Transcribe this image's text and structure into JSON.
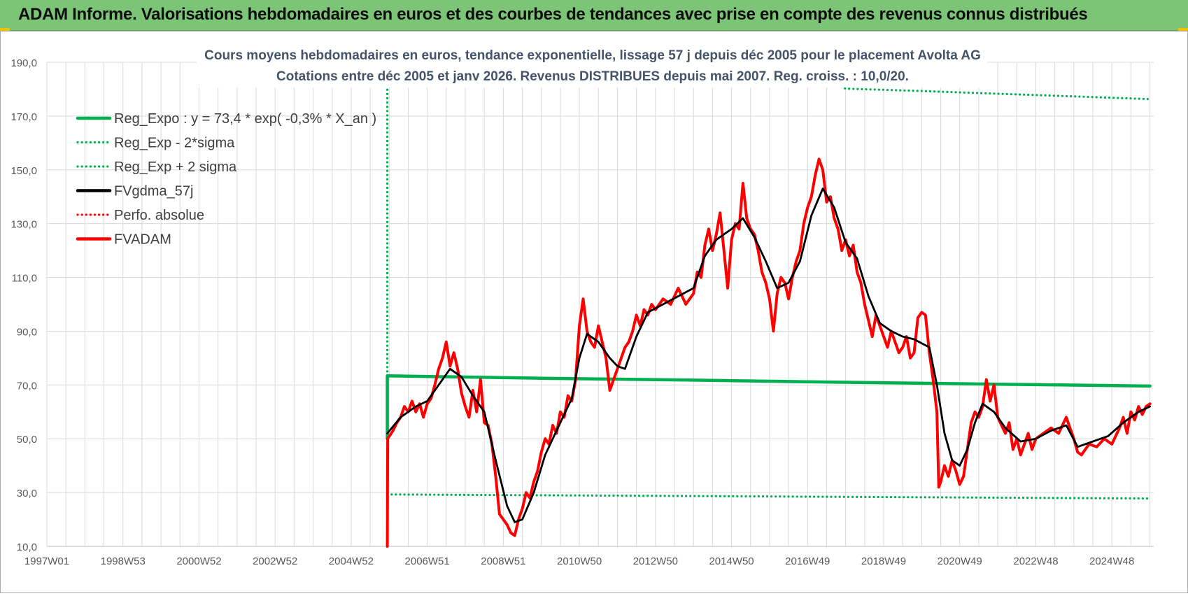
{
  "header": {
    "title": "ADAM Informe. Valorisations hebdomadaires en euros et des courbes de tendances avec prise en compte des revenus connus distribués"
  },
  "colors": {
    "title_bar": "#7cc576",
    "green": "#00b050",
    "black": "#000000",
    "red": "#ff0000",
    "grid": "#d9d9d9",
    "axis_text": "#595959",
    "chart_title": "#44546a"
  },
  "chart_data": {
    "type": "line",
    "title": "Cours moyens hebdomadaires en euros, tendance exponentielle, lissage 57 j depuis déc 2005 pour le placement Avolta AG",
    "subtitle": "Cotations entre déc 2005 et janv 2026. Revenus DISTRIBUES depuis mai 2007. Reg. croiss. : 10,0/20.",
    "xlabel": "",
    "ylabel": "",
    "x_range": [
      1997.0,
      2026.1
    ],
    "ylim": [
      10,
      190
    ],
    "y_ticks": [
      "10,0",
      "30,0",
      "50,0",
      "70,0",
      "90,0",
      "110,0",
      "130,0",
      "150,0",
      "170,0",
      "190,0"
    ],
    "x_ticks": [
      {
        "label": "1997W01",
        "x": 1997.0
      },
      {
        "label": "1998W53",
        "x": 1999.0
      },
      {
        "label": "2000W52",
        "x": 2001.0
      },
      {
        "label": "2002W52",
        "x": 2003.0
      },
      {
        "label": "2004W52",
        "x": 2005.0
      },
      {
        "label": "2006W51",
        "x": 2007.0
      },
      {
        "label": "2008W51",
        "x": 2009.0
      },
      {
        "label": "2010W50",
        "x": 2011.0
      },
      {
        "label": "2012W50",
        "x": 2013.0
      },
      {
        "label": "2014W50",
        "x": 2015.0
      },
      {
        "label": "2016W49",
        "x": 2017.0
      },
      {
        "label": "2018W49",
        "x": 2019.0
      },
      {
        "label": "2020W49",
        "x": 2021.0
      },
      {
        "label": "2022W48",
        "x": 2023.0
      },
      {
        "label": "2024W48",
        "x": 2025.0
      }
    ],
    "grid": true,
    "legend_position": "top-left",
    "series": [
      {
        "name": "Reg_Expo : y = 73,4 * exp( -0,3% *  X_an )",
        "style": "solid",
        "color": "#00b050",
        "points": [
          [
            2005.95,
            50
          ],
          [
            2005.95,
            73.4
          ],
          [
            2010,
            72.5
          ],
          [
            2014,
            71.8
          ],
          [
            2018,
            71.0
          ],
          [
            2022,
            70.3
          ],
          [
            2026.0,
            69.6
          ]
        ]
      },
      {
        "name": "Reg_Exp - 2*sigma",
        "style": "dotted",
        "color": "#00b050",
        "points": [
          [
            2005.95,
            29.3
          ],
          [
            2010,
            29.0
          ],
          [
            2014,
            28.7
          ],
          [
            2018,
            28.4
          ],
          [
            2022,
            28.1
          ],
          [
            2026.0,
            27.8
          ]
        ]
      },
      {
        "name": "Reg_Exp + 2 sigma",
        "style": "dotted",
        "color": "#00b050",
        "points": [
          [
            2005.95,
            10
          ],
          [
            2005.95,
            190
          ],
          [
            2005.95,
            190
          ],
          [
            2016.5,
            190
          ],
          [
            2018.0,
            180.2
          ],
          [
            2020,
            179.3
          ],
          [
            2022,
            178.3
          ],
          [
            2024,
            177.3
          ],
          [
            2026.0,
            176.3
          ]
        ]
      },
      {
        "name": "FVgdma_57j",
        "style": "solid",
        "color": "#000000",
        "points": [
          [
            2005.95,
            52
          ],
          [
            2006.3,
            58
          ],
          [
            2006.7,
            62
          ],
          [
            2007.0,
            64
          ],
          [
            2007.3,
            70
          ],
          [
            2007.6,
            76
          ],
          [
            2007.9,
            73
          ],
          [
            2008.2,
            66
          ],
          [
            2008.5,
            60
          ],
          [
            2008.8,
            42
          ],
          [
            2009.1,
            25
          ],
          [
            2009.3,
            19
          ],
          [
            2009.5,
            20
          ],
          [
            2009.8,
            30
          ],
          [
            2010.1,
            44
          ],
          [
            2010.5,
            56
          ],
          [
            2010.8,
            65
          ],
          [
            2011.0,
            80
          ],
          [
            2011.2,
            89
          ],
          [
            2011.5,
            86
          ],
          [
            2011.8,
            80
          ],
          [
            2012.0,
            77
          ],
          [
            2012.2,
            76
          ],
          [
            2012.5,
            88
          ],
          [
            2012.8,
            97
          ],
          [
            2013.2,
            100
          ],
          [
            2013.6,
            103
          ],
          [
            2014.0,
            106
          ],
          [
            2014.3,
            118
          ],
          [
            2014.6,
            124
          ],
          [
            2015.0,
            128
          ],
          [
            2015.3,
            132
          ],
          [
            2015.6,
            125
          ],
          [
            2015.9,
            116
          ],
          [
            2016.2,
            106
          ],
          [
            2016.5,
            108
          ],
          [
            2016.8,
            116
          ],
          [
            2017.1,
            133
          ],
          [
            2017.4,
            143
          ],
          [
            2017.7,
            136
          ],
          [
            2018.0,
            123
          ],
          [
            2018.3,
            117
          ],
          [
            2018.6,
            103
          ],
          [
            2018.9,
            93
          ],
          [
            2019.2,
            90
          ],
          [
            2019.5,
            88
          ],
          [
            2019.8,
            87
          ],
          [
            2020.2,
            84
          ],
          [
            2020.4,
            70
          ],
          [
            2020.6,
            52
          ],
          [
            2020.8,
            42
          ],
          [
            2021.0,
            40
          ],
          [
            2021.2,
            46
          ],
          [
            2021.4,
            56
          ],
          [
            2021.6,
            63
          ],
          [
            2021.9,
            60
          ],
          [
            2022.2,
            54
          ],
          [
            2022.6,
            49
          ],
          [
            2023.0,
            50
          ],
          [
            2023.4,
            53
          ],
          [
            2023.8,
            55
          ],
          [
            2024.1,
            47
          ],
          [
            2024.5,
            49
          ],
          [
            2024.9,
            51
          ],
          [
            2025.3,
            56
          ],
          [
            2025.7,
            60
          ],
          [
            2026.0,
            62
          ]
        ]
      },
      {
        "name": "Perfo. absolue",
        "style": "dotted",
        "color": "#ff0000",
        "points": []
      },
      {
        "name": "FVADAM",
        "style": "solid",
        "color": "#ff0000",
        "points": [
          [
            2005.95,
            10
          ],
          [
            2005.96,
            50
          ],
          [
            2006.1,
            53
          ],
          [
            2006.2,
            56
          ],
          [
            2006.3,
            58
          ],
          [
            2006.4,
            62
          ],
          [
            2006.5,
            60
          ],
          [
            2006.6,
            64
          ],
          [
            2006.7,
            60
          ],
          [
            2006.8,
            63
          ],
          [
            2006.9,
            58
          ],
          [
            2007.0,
            63
          ],
          [
            2007.1,
            65
          ],
          [
            2007.2,
            70
          ],
          [
            2007.3,
            76
          ],
          [
            2007.4,
            80
          ],
          [
            2007.5,
            86
          ],
          [
            2007.6,
            77
          ],
          [
            2007.7,
            82
          ],
          [
            2007.8,
            76
          ],
          [
            2007.9,
            67
          ],
          [
            2008.0,
            62
          ],
          [
            2008.1,
            58
          ],
          [
            2008.2,
            68
          ],
          [
            2008.3,
            60
          ],
          [
            2008.4,
            72
          ],
          [
            2008.5,
            56
          ],
          [
            2008.6,
            55
          ],
          [
            2008.7,
            48
          ],
          [
            2008.8,
            36
          ],
          [
            2008.9,
            22
          ],
          [
            2009.0,
            20
          ],
          [
            2009.1,
            18
          ],
          [
            2009.2,
            15
          ],
          [
            2009.3,
            14
          ],
          [
            2009.4,
            20
          ],
          [
            2009.5,
            24
          ],
          [
            2009.6,
            30
          ],
          [
            2009.7,
            28
          ],
          [
            2009.8,
            34
          ],
          [
            2009.9,
            38
          ],
          [
            2010.0,
            45
          ],
          [
            2010.1,
            50
          ],
          [
            2010.2,
            48
          ],
          [
            2010.3,
            55
          ],
          [
            2010.4,
            52
          ],
          [
            2010.5,
            60
          ],
          [
            2010.6,
            58
          ],
          [
            2010.7,
            66
          ],
          [
            2010.8,
            64
          ],
          [
            2010.9,
            72
          ],
          [
            2011.0,
            92
          ],
          [
            2011.1,
            102
          ],
          [
            2011.2,
            90
          ],
          [
            2011.3,
            86
          ],
          [
            2011.4,
            84
          ],
          [
            2011.5,
            92
          ],
          [
            2011.6,
            86
          ],
          [
            2011.7,
            80
          ],
          [
            2011.8,
            68
          ],
          [
            2011.9,
            72
          ],
          [
            2012.0,
            76
          ],
          [
            2012.1,
            80
          ],
          [
            2012.2,
            84
          ],
          [
            2012.3,
            86
          ],
          [
            2012.4,
            90
          ],
          [
            2012.5,
            96
          ],
          [
            2012.6,
            92
          ],
          [
            2012.7,
            98
          ],
          [
            2012.8,
            96
          ],
          [
            2012.9,
            100
          ],
          [
            2013.0,
            98
          ],
          [
            2013.2,
            102
          ],
          [
            2013.4,
            100
          ],
          [
            2013.6,
            106
          ],
          [
            2013.8,
            100
          ],
          [
            2014.0,
            104
          ],
          [
            2014.1,
            112
          ],
          [
            2014.2,
            110
          ],
          [
            2014.3,
            122
          ],
          [
            2014.4,
            128
          ],
          [
            2014.5,
            120
          ],
          [
            2014.6,
            126
          ],
          [
            2014.7,
            134
          ],
          [
            2014.8,
            120
          ],
          [
            2014.9,
            106
          ],
          [
            2015.0,
            124
          ],
          [
            2015.1,
            130
          ],
          [
            2015.2,
            128
          ],
          [
            2015.3,
            145
          ],
          [
            2015.4,
            132
          ],
          [
            2015.5,
            128
          ],
          [
            2015.6,
            126
          ],
          [
            2015.7,
            120
          ],
          [
            2015.8,
            112
          ],
          [
            2015.9,
            108
          ],
          [
            2016.0,
            102
          ],
          [
            2016.1,
            90
          ],
          [
            2016.2,
            104
          ],
          [
            2016.3,
            110
          ],
          [
            2016.4,
            108
          ],
          [
            2016.5,
            102
          ],
          [
            2016.6,
            110
          ],
          [
            2016.7,
            116
          ],
          [
            2016.8,
            120
          ],
          [
            2016.9,
            130
          ],
          [
            2017.0,
            136
          ],
          [
            2017.1,
            140
          ],
          [
            2017.2,
            148
          ],
          [
            2017.3,
            154
          ],
          [
            2017.4,
            150
          ],
          [
            2017.5,
            138
          ],
          [
            2017.6,
            140
          ],
          [
            2017.7,
            132
          ],
          [
            2017.8,
            128
          ],
          [
            2017.9,
            120
          ],
          [
            2018.0,
            124
          ],
          [
            2018.1,
            118
          ],
          [
            2018.2,
            122
          ],
          [
            2018.3,
            112
          ],
          [
            2018.4,
            108
          ],
          [
            2018.5,
            100
          ],
          [
            2018.6,
            94
          ],
          [
            2018.7,
            88
          ],
          [
            2018.8,
            96
          ],
          [
            2018.9,
            92
          ],
          [
            2019.0,
            88
          ],
          [
            2019.1,
            84
          ],
          [
            2019.2,
            90
          ],
          [
            2019.3,
            86
          ],
          [
            2019.4,
            82
          ],
          [
            2019.5,
            84
          ],
          [
            2019.6,
            88
          ],
          [
            2019.7,
            80
          ],
          [
            2019.8,
            82
          ],
          [
            2019.9,
            95
          ],
          [
            2020.0,
            97
          ],
          [
            2020.1,
            96
          ],
          [
            2020.2,
            82
          ],
          [
            2020.3,
            72
          ],
          [
            2020.4,
            60
          ],
          [
            2020.45,
            32
          ],
          [
            2020.5,
            34
          ],
          [
            2020.6,
            40
          ],
          [
            2020.7,
            36
          ],
          [
            2020.8,
            42
          ],
          [
            2020.9,
            38
          ],
          [
            2021.0,
            33
          ],
          [
            2021.1,
            36
          ],
          [
            2021.2,
            46
          ],
          [
            2021.3,
            56
          ],
          [
            2021.4,
            60
          ],
          [
            2021.5,
            58
          ],
          [
            2021.6,
            62
          ],
          [
            2021.7,
            72
          ],
          [
            2021.8,
            64
          ],
          [
            2021.9,
            70
          ],
          [
            2022.0,
            58
          ],
          [
            2022.1,
            55
          ],
          [
            2022.2,
            52
          ],
          [
            2022.3,
            56
          ],
          [
            2022.4,
            46
          ],
          [
            2022.5,
            50
          ],
          [
            2022.6,
            44
          ],
          [
            2022.7,
            48
          ],
          [
            2022.8,
            52
          ],
          [
            2022.9,
            46
          ],
          [
            2023.0,
            50
          ],
          [
            2023.2,
            52
          ],
          [
            2023.4,
            54
          ],
          [
            2023.6,
            52
          ],
          [
            2023.8,
            58
          ],
          [
            2024.0,
            50
          ],
          [
            2024.1,
            45
          ],
          [
            2024.2,
            44
          ],
          [
            2024.4,
            48
          ],
          [
            2024.6,
            47
          ],
          [
            2024.8,
            50
          ],
          [
            2025.0,
            48
          ],
          [
            2025.2,
            54
          ],
          [
            2025.3,
            58
          ],
          [
            2025.4,
            52
          ],
          [
            2025.5,
            60
          ],
          [
            2025.6,
            57
          ],
          [
            2025.7,
            62
          ],
          [
            2025.8,
            59
          ],
          [
            2025.9,
            62
          ],
          [
            2026.0,
            63
          ]
        ]
      }
    ]
  }
}
